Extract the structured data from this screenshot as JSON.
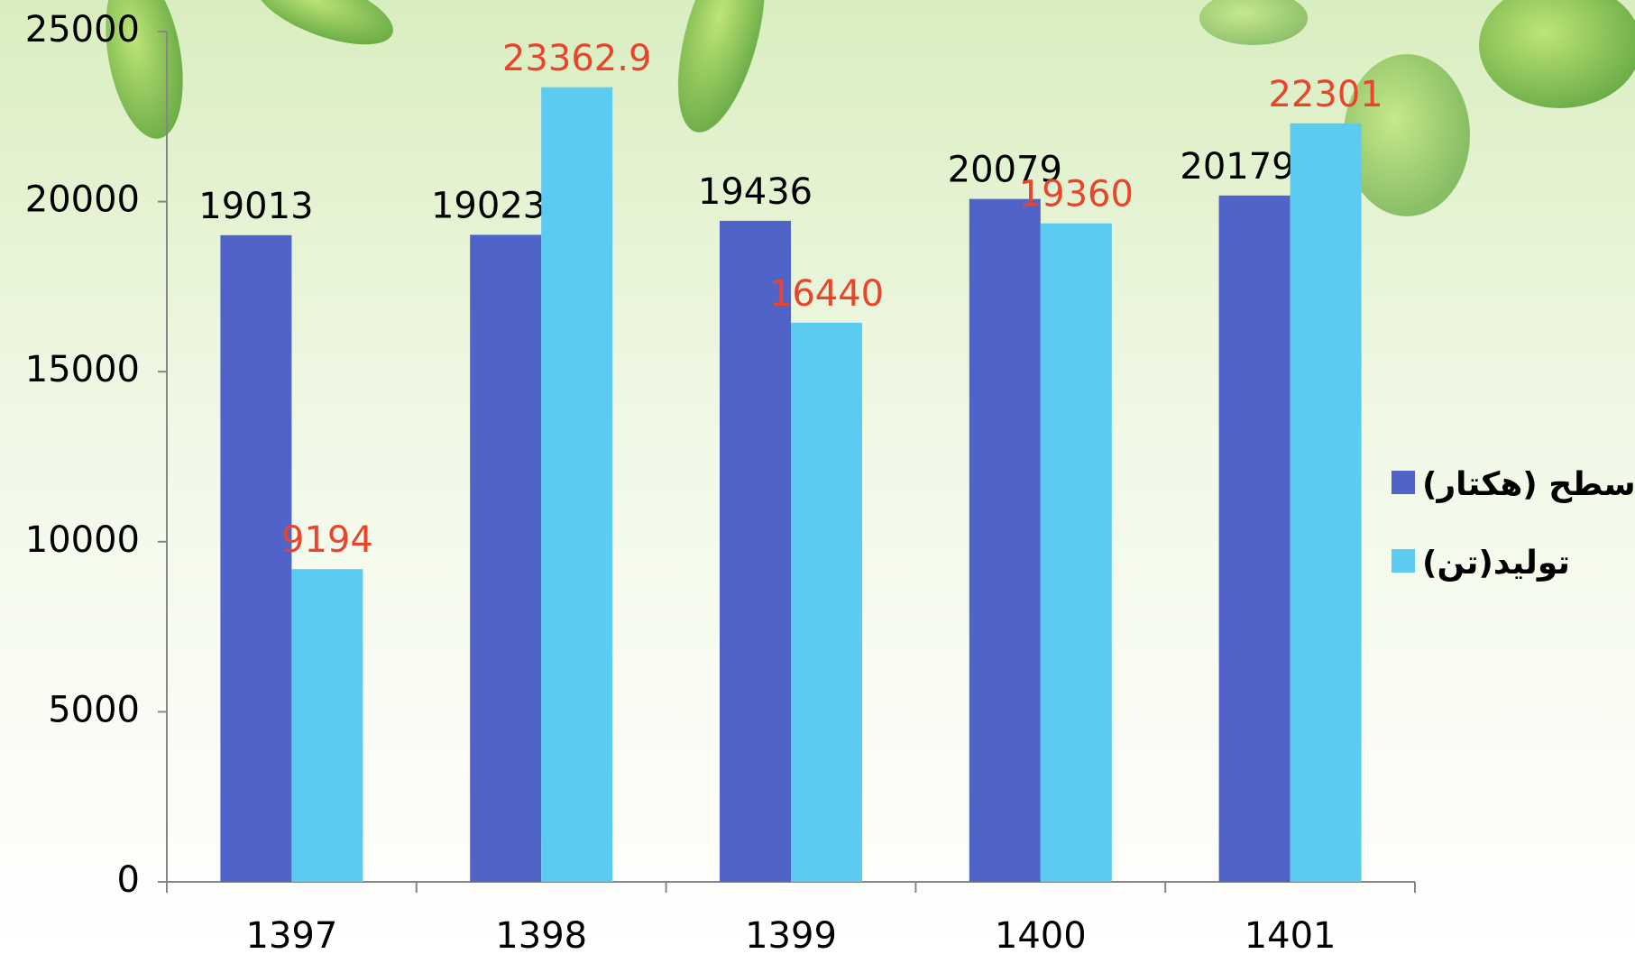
{
  "chart_data": {
    "type": "bar",
    "categories": [
      "1397",
      "1398",
      "1399",
      "1400",
      "1401"
    ],
    "series": [
      {
        "name": "سطح (هکتار)",
        "color": "#4f63c8",
        "label_color": "#000000",
        "values": [
          19013,
          19023.8,
          19436,
          20079,
          20179.3
        ]
      },
      {
        "name": "تولید(تن)",
        "color": "#5bcbf2",
        "label_color": "#e8452c",
        "values": [
          9194,
          23362.9,
          16440,
          19360,
          22301
        ]
      }
    ],
    "ylim": [
      0,
      25000
    ],
    "yticks": [
      0,
      5000,
      10000,
      15000,
      20000,
      25000
    ],
    "grid": false,
    "legend": "right"
  }
}
